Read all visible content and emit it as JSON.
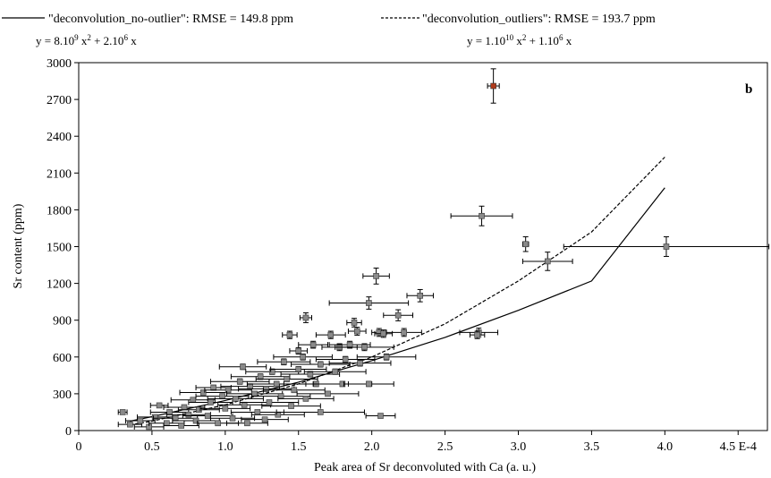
{
  "chart_data": {
    "type": "scatter",
    "panel_label": "b",
    "xlabel": "Peak area of Sr deconvoluted with Ca (a. u.)",
    "ylabel": "Sr content (ppm)",
    "xlim": [
      0,
      4.7
    ],
    "ylim": [
      0,
      3000
    ],
    "x_ticks": [
      {
        "value": 0,
        "label": "0"
      },
      {
        "value": 0.5,
        "label": "0.5"
      },
      {
        "value": 1.0,
        "label": "1.0"
      },
      {
        "value": 1.5,
        "label": "1.5"
      },
      {
        "value": 2.0,
        "label": "2.0"
      },
      {
        "value": 2.5,
        "label": "2.5"
      },
      {
        "value": 3.0,
        "label": "3.0"
      },
      {
        "value": 3.5,
        "label": "3.5"
      },
      {
        "value": 4.0,
        "label": "4.0"
      },
      {
        "value": 4.5,
        "label": "4.5 E-4"
      }
    ],
    "y_ticks": [
      0,
      300,
      600,
      900,
      1200,
      1500,
      1800,
      2100,
      2400,
      2700,
      3000
    ],
    "legend": [
      {
        "style": "solid",
        "label": "\"deconvolution_no-outlier\": RMSE = 149.8 ppm",
        "eq_prefix": "y = 8.10",
        "eq_exp1": "9",
        "eq_mid": " x",
        "eq_exp2": "2",
        "eq_suffix": " + 2.10",
        "eq_exp3": "6",
        "eq_end": " x"
      },
      {
        "style": "dashed",
        "label": "\"deconvolution_outliers\": RMSE = 193.7 ppm",
        "eq_prefix": "y = 1.10",
        "eq_exp1": "10",
        "eq_mid": " x",
        "eq_exp2": "2",
        "eq_suffix": " + 1.10",
        "eq_exp3": "6",
        "eq_end": " x"
      }
    ],
    "fits": [
      {
        "name": "deconvolution_no-outlier",
        "style": "solid",
        "x_range": [
          0.35,
          4.0
        ],
        "x": [
          0.35,
          0.5,
          1.0,
          1.5,
          2.0,
          2.5,
          3.0,
          3.5,
          4.0
        ],
        "y": [
          77,
          113,
          245,
          395,
          570,
          760,
          980,
          1220,
          1980
        ]
      },
      {
        "name": "deconvolution_outliers",
        "style": "dashed",
        "x_range": [
          0.35,
          4.0
        ],
        "x": [
          0.35,
          0.5,
          1.0,
          1.5,
          2.0,
          2.5,
          3.0,
          3.5,
          4.0
        ],
        "y": [
          47,
          77,
          210,
          380,
          600,
          870,
          1220,
          1620,
          2230
        ]
      }
    ],
    "outlier_points": [
      {
        "x": 2.83,
        "y": 2810,
        "xerr": 0.04,
        "yerr": 140,
        "color": "#b03a1a"
      },
      {
        "x": 2.75,
        "y": 1750,
        "xerr": 0.21,
        "yerr": 80
      },
      {
        "x": 4.01,
        "y": 1500,
        "xerr": 0.7,
        "yerr": 80
      },
      {
        "x": 3.2,
        "y": 1380,
        "xerr": 0.17,
        "yerr": 75
      },
      {
        "x": 3.05,
        "y": 1520,
        "xerr": 0.02,
        "yerr": 60
      },
      {
        "x": 2.03,
        "y": 1260,
        "xerr": 0.09,
        "yerr": 65
      },
      {
        "x": 2.33,
        "y": 1100,
        "xerr": 0.09,
        "yerr": 50
      },
      {
        "x": 1.98,
        "y": 1040,
        "xerr": 0.27,
        "yerr": 50
      },
      {
        "x": 2.18,
        "y": 940,
        "xerr": 0.1,
        "yerr": 45
      },
      {
        "x": 1.55,
        "y": 920,
        "xerr": 0.04,
        "yerr": 40
      },
      {
        "x": 2.73,
        "y": 800,
        "xerr": 0.13,
        "yerr": 35
      },
      {
        "x": 2.72,
        "y": 780,
        "xerr": 0.05,
        "yerr": 30
      },
      {
        "x": 2.06,
        "y": 120,
        "xerr": 0.1,
        "yerr": 10
      }
    ],
    "cluster_points": [
      {
        "x": 0.3,
        "y": 150,
        "xerr": 0.03,
        "yerr": 15
      },
      {
        "x": 0.35,
        "y": 50,
        "xerr": 0.08,
        "yerr": 10
      },
      {
        "x": 0.42,
        "y": 80,
        "xerr": 0.1,
        "yerr": 12
      },
      {
        "x": 0.48,
        "y": 30,
        "xerr": 0.1,
        "yerr": 8
      },
      {
        "x": 0.52,
        "y": 110,
        "xerr": 0.12,
        "yerr": 12
      },
      {
        "x": 0.55,
        "y": 205,
        "xerr": 0.06,
        "yerr": 15
      },
      {
        "x": 0.6,
        "y": 60,
        "xerr": 0.12,
        "yerr": 10
      },
      {
        "x": 0.62,
        "y": 150,
        "xerr": 0.13,
        "yerr": 15
      },
      {
        "x": 0.66,
        "y": 100,
        "xerr": 0.15,
        "yerr": 12
      },
      {
        "x": 0.7,
        "y": 40,
        "xerr": 0.12,
        "yerr": 8
      },
      {
        "x": 0.72,
        "y": 190,
        "xerr": 0.14,
        "yerr": 15
      },
      {
        "x": 0.75,
        "y": 130,
        "xerr": 0.15,
        "yerr": 12
      },
      {
        "x": 0.78,
        "y": 250,
        "xerr": 0.15,
        "yerr": 18
      },
      {
        "x": 0.8,
        "y": 80,
        "xerr": 0.16,
        "yerr": 10
      },
      {
        "x": 0.82,
        "y": 170,
        "xerr": 0.14,
        "yerr": 14
      },
      {
        "x": 0.85,
        "y": 310,
        "xerr": 0.16,
        "yerr": 18
      },
      {
        "x": 0.88,
        "y": 120,
        "xerr": 0.17,
        "yerr": 12
      },
      {
        "x": 0.9,
        "y": 230,
        "xerr": 0.15,
        "yerr": 16
      },
      {
        "x": 0.92,
        "y": 350,
        "xerr": 0.12,
        "yerr": 20
      },
      {
        "x": 0.95,
        "y": 60,
        "xerr": 0.14,
        "yerr": 10
      },
      {
        "x": 0.98,
        "y": 280,
        "xerr": 0.18,
        "yerr": 18
      },
      {
        "x": 1.0,
        "y": 180,
        "xerr": 0.17,
        "yerr": 14
      },
      {
        "x": 1.02,
        "y": 330,
        "xerr": 0.16,
        "yerr": 20
      },
      {
        "x": 1.05,
        "y": 100,
        "xerr": 0.15,
        "yerr": 12
      },
      {
        "x": 1.07,
        "y": 260,
        "xerr": 0.19,
        "yerr": 18
      },
      {
        "x": 1.1,
        "y": 400,
        "xerr": 0.2,
        "yerr": 22
      },
      {
        "x": 1.12,
        "y": 520,
        "xerr": 0.16,
        "yerr": 22
      },
      {
        "x": 1.13,
        "y": 210,
        "xerr": 0.18,
        "yerr": 15
      },
      {
        "x": 1.15,
        "y": 60,
        "xerr": 0.14,
        "yerr": 10
      },
      {
        "x": 1.17,
        "y": 360,
        "xerr": 0.2,
        "yerr": 20
      },
      {
        "x": 1.2,
        "y": 300,
        "xerr": 0.19,
        "yerr": 18
      },
      {
        "x": 1.22,
        "y": 150,
        "xerr": 0.18,
        "yerr": 14
      },
      {
        "x": 1.24,
        "y": 440,
        "xerr": 0.2,
        "yerr": 22
      },
      {
        "x": 1.27,
        "y": 90,
        "xerr": 0.16,
        "yerr": 12
      },
      {
        "x": 1.28,
        "y": 340,
        "xerr": 0.19,
        "yerr": 20
      },
      {
        "x": 1.3,
        "y": 230,
        "xerr": 0.2,
        "yerr": 16
      },
      {
        "x": 1.32,
        "y": 480,
        "xerr": 0.18,
        "yerr": 22
      },
      {
        "x": 1.35,
        "y": 380,
        "xerr": 0.2,
        "yerr": 20
      },
      {
        "x": 1.36,
        "y": 130,
        "xerr": 0.18,
        "yerr": 14
      },
      {
        "x": 1.38,
        "y": 280,
        "xerr": 0.2,
        "yerr": 18
      },
      {
        "x": 1.4,
        "y": 560,
        "xerr": 0.18,
        "yerr": 24
      },
      {
        "x": 1.42,
        "y": 420,
        "xerr": 0.21,
        "yerr": 20
      },
      {
        "x": 1.44,
        "y": 780,
        "xerr": 0.05,
        "yerr": 30
      },
      {
        "x": 1.45,
        "y": 200,
        "xerr": 0.2,
        "yerr": 16
      },
      {
        "x": 1.47,
        "y": 330,
        "xerr": 0.21,
        "yerr": 18
      },
      {
        "x": 1.5,
        "y": 500,
        "xerr": 0.19,
        "yerr": 22
      },
      {
        "x": 1.5,
        "y": 650,
        "xerr": 0.06,
        "yerr": 26
      },
      {
        "x": 1.53,
        "y": 600,
        "xerr": 0.2,
        "yerr": 24
      },
      {
        "x": 1.55,
        "y": 260,
        "xerr": 0.19,
        "yerr": 18
      },
      {
        "x": 1.58,
        "y": 460,
        "xerr": 0.2,
        "yerr": 22
      },
      {
        "x": 1.6,
        "y": 700,
        "xerr": 0.1,
        "yerr": 28
      },
      {
        "x": 1.62,
        "y": 380,
        "xerr": 0.22,
        "yerr": 20
      },
      {
        "x": 1.65,
        "y": 540,
        "xerr": 0.2,
        "yerr": 22
      },
      {
        "x": 1.7,
        "y": 300,
        "xerr": 0.21,
        "yerr": 18
      },
      {
        "x": 1.72,
        "y": 780,
        "xerr": 0.1,
        "yerr": 30
      },
      {
        "x": 1.75,
        "y": 480,
        "xerr": 0.21,
        "yerr": 22
      },
      {
        "x": 1.78,
        "y": 680,
        "xerr": 0.12,
        "yerr": 28
      },
      {
        "x": 1.8,
        "y": 380,
        "xerr": 0.2,
        "yerr": 20
      },
      {
        "x": 1.82,
        "y": 580,
        "xerr": 0.2,
        "yerr": 24
      },
      {
        "x": 1.85,
        "y": 700,
        "xerr": 0.14,
        "yerr": 28
      },
      {
        "x": 1.88,
        "y": 880,
        "xerr": 0.05,
        "yerr": 35
      },
      {
        "x": 1.9,
        "y": 810,
        "xerr": 0.06,
        "yerr": 32
      },
      {
        "x": 1.92,
        "y": 550,
        "xerr": 0.21,
        "yerr": 24
      },
      {
        "x": 1.95,
        "y": 680,
        "xerr": 0.2,
        "yerr": 28
      },
      {
        "x": 2.05,
        "y": 800,
        "xerr": 0.05,
        "yerr": 32
      },
      {
        "x": 2.08,
        "y": 790,
        "xerr": 0.06,
        "yerr": 30
      },
      {
        "x": 2.1,
        "y": 600,
        "xerr": 0.2,
        "yerr": 24
      },
      {
        "x": 2.22,
        "y": 800,
        "xerr": 0.12,
        "yerr": 32
      },
      {
        "x": 1.65,
        "y": 150,
        "xerr": 0.3,
        "yerr": 14
      },
      {
        "x": 1.98,
        "y": 380,
        "xerr": 0.17,
        "yerr": 20
      }
    ]
  }
}
